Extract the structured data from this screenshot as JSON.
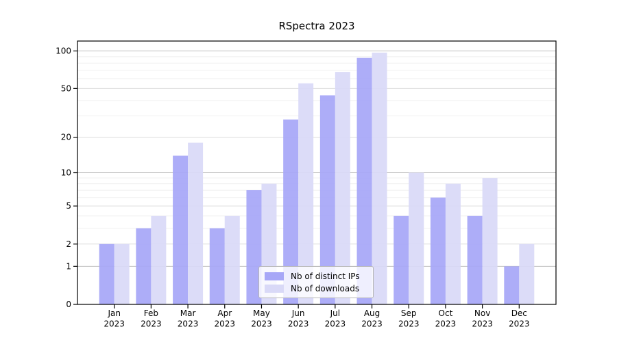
{
  "chart_data": {
    "type": "bar",
    "title": "RSpectra 2023",
    "categories": [
      "Jan 2023",
      "Feb 2023",
      "Mar 2023",
      "Apr 2023",
      "May 2023",
      "Jun 2023",
      "Jul 2023",
      "Aug 2023",
      "Sep 2023",
      "Oct 2023",
      "Nov 2023",
      "Dec 2023"
    ],
    "x_axis": {
      "months": [
        "Jan",
        "Feb",
        "Mar",
        "Apr",
        "May",
        "Jun",
        "Jul",
        "Aug",
        "Sep",
        "Oct",
        "Nov",
        "Dec"
      ],
      "year": "2023"
    },
    "y_axis": {
      "scale": "log1p",
      "ticks": [
        0,
        1,
        2,
        5,
        10,
        20,
        50,
        100
      ],
      "minor_ticks": [
        3,
        4,
        6,
        7,
        8,
        9,
        30,
        40,
        60,
        70,
        80,
        90
      ],
      "max": 120
    },
    "series": [
      {
        "name": "Nb of distinct IPs",
        "color": "#a7a7f7",
        "values": [
          2,
          3,
          14,
          3,
          7,
          28,
          44,
          88,
          4,
          6,
          4,
          1
        ]
      },
      {
        "name": "Nb of downloads",
        "color": "#d9d9f7",
        "values": [
          2,
          4,
          18,
          4,
          8,
          55,
          68,
          97,
          10,
          8,
          9,
          2
        ]
      }
    ],
    "legend": {
      "position": "bottom-center"
    },
    "colors": {
      "grid_decade": "#bdbdbd",
      "grid_major": "#dcdcdc",
      "grid_minor": "#efefef",
      "axis": "#000000",
      "background": "#ffffff"
    }
  }
}
